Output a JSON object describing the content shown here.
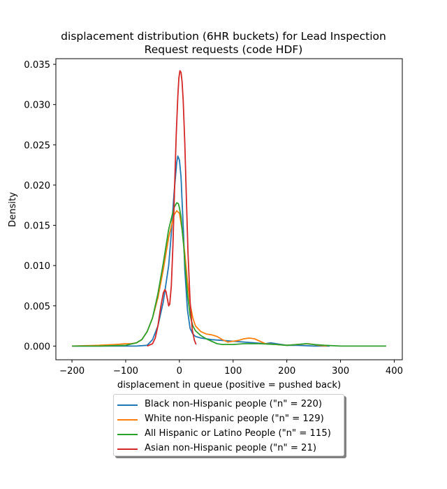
{
  "chart_data": {
    "type": "line",
    "title": "displacement distribution (6HR buckets) for Lead Inspection Request requests (code HDF)",
    "title_lines": [
      "displacement distribution (6HR buckets) for Lead Inspection",
      "Request requests (code HDF)"
    ],
    "xlabel": "displacement in queue (positive = pushed back)",
    "ylabel": "Density",
    "xlim": [
      -230,
      415
    ],
    "ylim": [
      -0.0017,
      0.0357
    ],
    "xticks": [
      -200,
      -100,
      0,
      100,
      200,
      300,
      400
    ],
    "xtick_labels": [
      "−200",
      "−100",
      "0",
      "100",
      "200",
      "300",
      "400"
    ],
    "yticks": [
      0.0,
      0.005,
      0.01,
      0.015,
      0.02,
      0.025,
      0.03,
      0.035
    ],
    "ytick_labels": [
      "0.000",
      "0.005",
      "0.010",
      "0.015",
      "0.020",
      "0.025",
      "0.030",
      "0.035"
    ],
    "grid": false,
    "legend_position": "below",
    "series": [
      {
        "name": "Black non-Hispanic people (\"n\" = 220)",
        "color": "#1f77b4",
        "x": [
          -200,
          -120,
          -80,
          -60,
          -50,
          -40,
          -30,
          -20,
          -15,
          -10,
          -5,
          -3,
          0,
          3,
          5,
          8,
          10,
          15,
          20,
          25,
          30,
          40,
          50,
          60,
          80,
          100,
          120,
          140,
          160,
          170,
          180,
          200,
          220,
          250,
          280
        ],
        "y": [
          0.0,
          0.0,
          0.0,
          0.0001,
          0.0008,
          0.0025,
          0.0055,
          0.01,
          0.014,
          0.019,
          0.0228,
          0.0236,
          0.0231,
          0.021,
          0.018,
          0.0135,
          0.0095,
          0.0045,
          0.0022,
          0.0015,
          0.0012,
          0.001,
          0.0009,
          0.0008,
          0.0007,
          0.0006,
          0.0005,
          0.0004,
          0.0003,
          0.0004,
          0.0003,
          0.0001,
          0.0001,
          0.0,
          0.0
        ]
      },
      {
        "name": "White non-Hispanic people (\"n\" = 129)",
        "color": "#ff7f0e",
        "x": [
          -200,
          -150,
          -120,
          -100,
          -90,
          -80,
          -70,
          -60,
          -50,
          -40,
          -30,
          -20,
          -10,
          -5,
          0,
          5,
          10,
          15,
          20,
          25,
          30,
          40,
          50,
          60,
          70,
          80,
          90,
          100,
          110,
          120,
          130,
          140,
          150,
          160,
          180,
          200,
          220,
          240,
          260,
          275
        ],
        "y": [
          0.0,
          0.0001,
          0.0002,
          0.0003,
          0.0003,
          0.0004,
          0.0008,
          0.0018,
          0.0035,
          0.006,
          0.0095,
          0.0135,
          0.0163,
          0.0168,
          0.0165,
          0.0145,
          0.0115,
          0.008,
          0.0052,
          0.0035,
          0.0025,
          0.0018,
          0.0015,
          0.0014,
          0.0012,
          0.0008,
          0.0005,
          0.0006,
          0.0007,
          0.0009,
          0.001,
          0.0009,
          0.0006,
          0.0003,
          0.0002,
          0.0001,
          0.0002,
          0.0003,
          0.0001,
          0.0
        ]
      },
      {
        "name": "All Hispanic or Latino People (\"n\" = 115)",
        "color": "#2ca02c",
        "x": [
          -200,
          -150,
          -100,
          -80,
          -70,
          -60,
          -50,
          -40,
          -30,
          -20,
          -10,
          -5,
          -2,
          0,
          3,
          5,
          8,
          10,
          15,
          20,
          25,
          30,
          40,
          50,
          60,
          70,
          80,
          100,
          120,
          150,
          180,
          200,
          220,
          235,
          250,
          270,
          300,
          350,
          385
        ],
        "y": [
          0.0,
          0.0,
          0.0001,
          0.0004,
          0.0008,
          0.0018,
          0.0035,
          0.0065,
          0.0103,
          0.0145,
          0.0172,
          0.0178,
          0.0177,
          0.0172,
          0.016,
          0.0145,
          0.0125,
          0.0105,
          0.0065,
          0.0038,
          0.0025,
          0.0019,
          0.0013,
          0.0009,
          0.0006,
          0.0003,
          0.0002,
          0.0002,
          0.0003,
          0.0003,
          0.0002,
          0.0001,
          0.0002,
          0.0003,
          0.0002,
          0.0001,
          0.0,
          0.0,
          0.0
        ]
      },
      {
        "name": "Asian non-Hispanic people (\"n\" = 21)",
        "color": "#d62728",
        "x": [
          -60,
          -50,
          -45,
          -40,
          -35,
          -30,
          -27,
          -25,
          -22,
          -20,
          -18,
          -15,
          -12,
          -9,
          -6,
          -3,
          -1,
          1,
          3,
          5,
          7,
          10,
          13,
          16,
          20,
          24,
          28,
          31
        ],
        "y": [
          0.0,
          0.0003,
          0.001,
          0.0025,
          0.0048,
          0.0066,
          0.007,
          0.0068,
          0.0057,
          0.005,
          0.0052,
          0.0075,
          0.0125,
          0.0195,
          0.0262,
          0.031,
          0.0333,
          0.0342,
          0.034,
          0.0328,
          0.0305,
          0.0252,
          0.0182,
          0.0115,
          0.0055,
          0.002,
          0.0007,
          0.0002
        ]
      }
    ]
  }
}
